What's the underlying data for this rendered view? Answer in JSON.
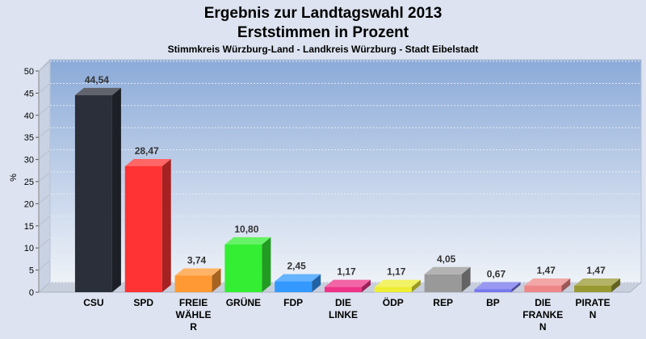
{
  "chart_data": {
    "type": "bar",
    "title": "Ergebnis zur Landtagswahl 2013",
    "subtitle": "Erststimmen in Prozent",
    "subsubtitle": "Stimmkreis Würzburg-Land - Landkreis Würzburg - Stadt Eibelstadt",
    "ylabel": "%",
    "ylim": [
      0,
      50
    ],
    "yticks": [
      0,
      5,
      10,
      15,
      20,
      25,
      30,
      35,
      40,
      45,
      50
    ],
    "categories": [
      [
        "CSU"
      ],
      [
        "SPD"
      ],
      [
        "FREIE",
        "WÄHLE",
        "R"
      ],
      [
        "GRÜNE"
      ],
      [
        "FDP"
      ],
      [
        "DIE",
        "LINKE"
      ],
      [
        "ÖDP"
      ],
      [
        "REP"
      ],
      [
        "BP"
      ],
      [
        "DIE",
        "FRANKE",
        "N"
      ],
      [
        "PIRATE",
        "N"
      ]
    ],
    "values": [
      44.54,
      28.47,
      3.74,
      10.8,
      2.45,
      1.17,
      1.17,
      4.05,
      0.67,
      1.47,
      1.47
    ],
    "value_labels": [
      "44,54",
      "28,47",
      "3,74",
      "10,80",
      "2,45",
      "1,17",
      "1,17",
      "4,05",
      "0,67",
      "1,47",
      "1,47"
    ],
    "colors": [
      "#2b2f3a",
      "#ff3333",
      "#ff9933",
      "#33ee33",
      "#3399ff",
      "#ee3388",
      "#eeee33",
      "#999999",
      "#7777ee",
      "#ee8888",
      "#999933"
    ],
    "grid": true,
    "legend": "none"
  }
}
